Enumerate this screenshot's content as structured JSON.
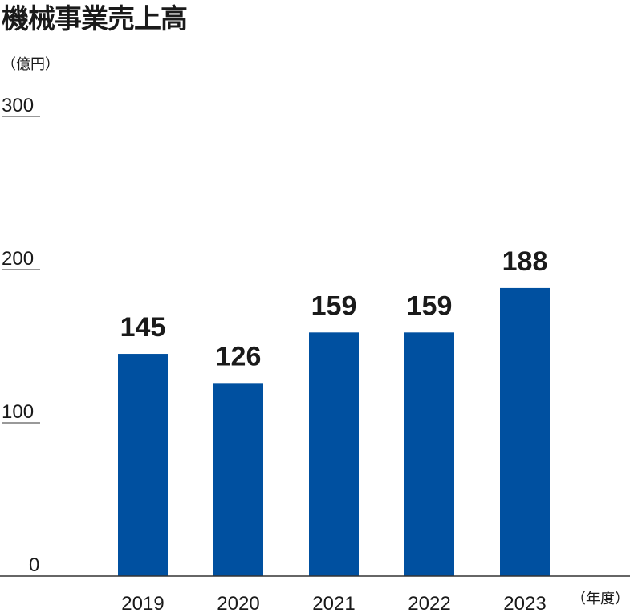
{
  "chart_data": {
    "type": "bar",
    "title": "機械事業売上高",
    "ylabel": "（億円）",
    "xlabel": "（年度）",
    "categories": [
      "2019",
      "2020",
      "2021",
      "2022",
      "2023"
    ],
    "values": [
      145,
      126,
      159,
      159,
      188
    ],
    "ylim": [
      0,
      300
    ],
    "yticks": [
      0,
      100,
      200,
      300
    ],
    "grid": false,
    "bar_color": "#0050A0"
  }
}
